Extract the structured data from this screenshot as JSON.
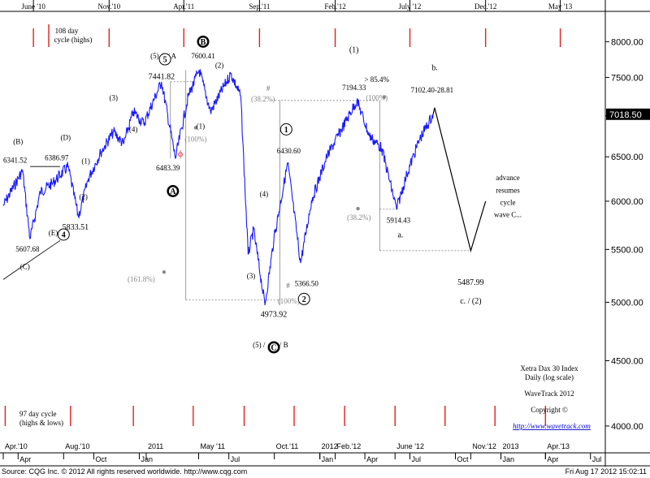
{
  "chart_data": {
    "type": "line",
    "title": "Xetra Dax 30 Index",
    "subtitle": "Daily (log scale)",
    "brand": "WaveTrack 2012",
    "copyright": "Copyright  ©",
    "url": "http://www.wavetrack.com",
    "last_price": "7018.50",
    "y_scale": "log",
    "ylim": [
      3800,
      8400
    ],
    "y_ticks": [
      "8000.00",
      "7500.00",
      "7000.00",
      "6500.00",
      "6000.00",
      "5500.00",
      "5000.00",
      "4500.00",
      "4000.00"
    ],
    "x_range": [
      "2010-04-01",
      "2013-07-31"
    ],
    "bottom_month_labels": [
      {
        "t": "Apr.'10",
        "d": "2010-04-01",
        "color": "#000"
      },
      {
        "t": "Apr",
        "d": "2010-05-01",
        "color": "#000"
      },
      {
        "t": "Aug.'10",
        "d": "2010-08-01",
        "color": "#000"
      },
      {
        "t": "Oct",
        "d": "2010-10-01",
        "color": "#000"
      },
      {
        "t": "Jan",
        "d": "2011-01-01",
        "color": "#000"
      },
      {
        "t": "2011",
        "d": "2011-01-15",
        "color": "#000"
      },
      {
        "t": "May '11",
        "d": "2011-05-01",
        "color": "#000"
      },
      {
        "t": "Jul",
        "d": "2011-07-01",
        "color": "#000"
      },
      {
        "t": "Oct.'11",
        "d": "2011-10-01",
        "color": "#000"
      },
      {
        "t": "Jan",
        "d": "2012-01-01",
        "color": "#000"
      },
      {
        "t": "2012",
        "d": "2012-01-01",
        "color": "#000"
      },
      {
        "t": "Feb.'12",
        "d": "2012-02-01",
        "color": "#000"
      },
      {
        "t": "Apr",
        "d": "2012-04-01",
        "color": "#000"
      },
      {
        "t": "June '12",
        "d": "2012-06-01",
        "color": "#000"
      },
      {
        "t": "Jul",
        "d": "2012-07-01",
        "color": "#000"
      },
      {
        "t": "Oct",
        "d": "2012-10-01",
        "color": "#000"
      },
      {
        "t": "Nov.'12",
        "d": "2012-11-01",
        "color": "#000"
      },
      {
        "t": "2013",
        "d": "2013-01-01",
        "color": "#000"
      },
      {
        "t": "Jan",
        "d": "2013-01-01",
        "color": "#000"
      },
      {
        "t": "Apr.'13",
        "d": "2013-04-01",
        "color": "#000"
      },
      {
        "t": "Apr",
        "d": "2013-04-01",
        "color": "#000"
      },
      {
        "t": "Jul",
        "d": "2013-07-01",
        "color": "#000"
      }
    ],
    "top_cycle_labels": [
      {
        "t": "June '10",
        "d": "2010-06-01"
      },
      {
        "t": "Nov.'10",
        "d": "2010-11-01"
      },
      {
        "t": "Apr.'11",
        "d": "2011-04-01"
      },
      {
        "t": "Sep.'11",
        "d": "2011-09-01"
      },
      {
        "t": "Feb.'12",
        "d": "2012-02-01"
      },
      {
        "t": "July '12",
        "d": "2012-07-01"
      },
      {
        "t": "Dec.'12",
        "d": "2012-12-01"
      },
      {
        "t": "May '13",
        "d": "2013-05-01"
      }
    ],
    "top_cycle_caption": [
      "108 day",
      "cycle (highs)"
    ],
    "bottom_cycle_caption": [
      "97 day cycle",
      "(highs & lows)"
    ],
    "bottom_cycle_dates": [
      "2010-04-05",
      "2010-08-15",
      "2010-12-20",
      "2011-04-20",
      "2011-08-01",
      "2011-11-10",
      "2012-02-20",
      "2012-06-01",
      "2012-09-10",
      "2012-12-20",
      "2013-04-01"
    ],
    "price_path": [
      [
        "2010-04-01",
        5950
      ],
      [
        "2010-05-10",
        6341.52
      ],
      [
        "2010-05-25",
        5607.68
      ],
      [
        "2010-06-15",
        6100
      ],
      [
        "2010-07-10",
        6200
      ],
      [
        "2010-08-10",
        6386.97
      ],
      [
        "2010-08-31",
        5833.51
      ],
      [
        "2010-09-20",
        6250
      ],
      [
        "2010-10-15",
        6550
      ],
      [
        "2010-11-10",
        6800
      ],
      [
        "2010-11-30",
        6650
      ],
      [
        "2010-12-20",
        7050
      ],
      [
        "2011-01-10",
        6900
      ],
      [
        "2011-02-15",
        7441.82
      ],
      [
        "2011-03-15",
        6483.39
      ],
      [
        "2011-04-10",
        7250
      ],
      [
        "2011-05-02",
        7600.41
      ],
      [
        "2011-05-25",
        7050
      ],
      [
        "2011-07-05",
        7550
      ],
      [
        "2011-07-25",
        7250
      ],
      [
        "2011-08-09",
        5450
      ],
      [
        "2011-08-20",
        5700
      ],
      [
        "2011-09-12",
        4973.92
      ],
      [
        "2011-09-30",
        5600
      ],
      [
        "2011-10-28",
        6430.6
      ],
      [
        "2011-11-23",
        5366.5
      ],
      [
        "2011-12-15",
        6000
      ],
      [
        "2012-01-15",
        6500
      ],
      [
        "2012-03-16",
        7194.33
      ],
      [
        "2012-04-10",
        6750
      ],
      [
        "2012-05-05",
        6600
      ],
      [
        "2012-06-04",
        5914.43
      ],
      [
        "2012-06-25",
        6300
      ],
      [
        "2012-07-20",
        6700
      ],
      [
        "2012-08-17",
        7018.5
      ]
    ],
    "forecast_path": [
      [
        "2012-08-20",
        7102.4
      ],
      [
        "2012-11-01",
        5487.99
      ],
      [
        "2012-12-01",
        6000
      ]
    ],
    "annotations": [
      {
        "t": "(B)",
        "d": "2010-05-01",
        "v": 6650,
        "s": 9
      },
      {
        "t": "6341.52",
        "d": "2010-04-25",
        "v": 6430,
        "s": 9
      },
      {
        "t": "(D)",
        "d": "2010-08-05",
        "v": 6700,
        "s": 9
      },
      {
        "t": "6386.97",
        "d": "2010-07-18",
        "v": 6460,
        "s": 9
      },
      {
        "t": "(1)",
        "d": "2010-09-15",
        "v": 6420,
        "s": 9
      },
      {
        "t": "(2)",
        "d": "2010-09-10",
        "v": 6020,
        "s": 9
      },
      {
        "t": "5833.51",
        "d": "2010-08-25",
        "v": 5700,
        "s": 10
      },
      {
        "t": "5607.68",
        "d": "2010-05-20",
        "v": 5480,
        "s": 9
      },
      {
        "t": "(E) /",
        "d": "2010-07-15",
        "v": 5640,
        "s": 9
      },
      {
        "t": "(C)",
        "d": "2010-05-15",
        "v": 5310,
        "s": 9
      },
      {
        "t": "(3)",
        "d": "2010-11-10",
        "v": 7200,
        "s": 9
      },
      {
        "t": "(4)",
        "d": "2010-12-20",
        "v": 6800,
        "s": 9
      },
      {
        "t": "(5) /",
        "d": "2011-02-05",
        "v": 7760,
        "s": 9
      },
      {
        "t": "/ A",
        "d": "2011-03-08",
        "v": 7760,
        "s": 9
      },
      {
        "t": "7441.82",
        "d": "2011-02-15",
        "v": 7480,
        "s": 10
      },
      {
        "t": "6483.39",
        "d": "2011-02-28",
        "v": 6340,
        "s": 9
      },
      {
        "t": "7600.41",
        "d": "2011-05-10",
        "v": 7760,
        "s": 9
      },
      {
        "t": "(2)",
        "d": "2011-06-12",
        "v": 7630,
        "s": 9
      },
      {
        "t": "(1)",
        "d": "2011-05-05",
        "v": 6840,
        "s": 9
      },
      {
        "t": "(100%)",
        "d": "2011-04-25",
        "v": 6680,
        "s": 9,
        "c": "#888"
      },
      {
        "t": "(4)",
        "d": "2011-09-10",
        "v": 6050,
        "s": 9
      },
      {
        "t": "6430.60",
        "d": "2011-10-30",
        "v": 6540,
        "s": 9
      },
      {
        "t": "(3)",
        "d": "2011-08-15",
        "v": 5220,
        "s": 9
      },
      {
        "t": "5366.50",
        "d": "2011-12-05",
        "v": 5150,
        "s": 9
      },
      {
        "t": "4973.92",
        "d": "2011-09-30",
        "v": 4870,
        "s": 10
      },
      {
        "t": "(5) /",
        "d": "2011-08-31",
        "v": 4610,
        "s": 9
      },
      {
        "t": "/ B",
        "d": "2011-10-20",
        "v": 4610,
        "s": 9
      },
      {
        "t": "(38.2%)",
        "d": "2011-09-08",
        "v": 7180,
        "s": 9,
        "c": "#888"
      },
      {
        "t": "(161.8%)",
        "d": "2011-01-05",
        "v": 5190,
        "s": 9,
        "c": "#888"
      },
      {
        "t": "(100%)",
        "d": "2011-10-30",
        "v": 4990,
        "s": 9,
        "c": "#888"
      },
      {
        "t": "(1)",
        "d": "2012-03-10",
        "v": 7850,
        "s": 10
      },
      {
        "t": "7194.33",
        "d": "2012-03-10",
        "v": 7330,
        "s": 9
      },
      {
        "t": "> 85.4%",
        "d": "2012-04-25",
        "v": 7440,
        "s": 9
      },
      {
        "t": "(100%)",
        "d": "2012-04-25",
        "v": 7200,
        "s": 9,
        "c": "#888"
      },
      {
        "t": "(38.2%)",
        "d": "2012-03-20",
        "v": 5800,
        "s": 9,
        "c": "#888"
      },
      {
        "t": "5914.43",
        "d": "2012-06-08",
        "v": 5770,
        "s": 9
      },
      {
        "t": "a.",
        "d": "2012-06-12",
        "v": 5620,
        "s": 10
      },
      {
        "t": "b.",
        "d": "2012-08-20",
        "v": 7600,
        "s": 10
      },
      {
        "t": "7102.40-28.81",
        "d": "2012-08-15",
        "v": 7300,
        "s": 9
      },
      {
        "t": "5487.99",
        "d": "2012-11-01",
        "v": 5160,
        "s": 10
      },
      {
        "t": "c. / (2)",
        "d": "2012-11-01",
        "v": 4990,
        "s": 10
      },
      {
        "t": "advance",
        "d": "2013-01-15",
        "v": 6230,
        "s": 9
      },
      {
        "t": "resumes",
        "d": "2013-01-15",
        "v": 6090,
        "s": 9
      },
      {
        "t": "cycle",
        "d": "2013-01-15",
        "v": 5960,
        "s": 9
      },
      {
        "t": "wave C...",
        "d": "2013-01-15",
        "v": 5830,
        "s": 9
      }
    ],
    "circle_labels": [
      {
        "t": "5",
        "d": "2011-02-22",
        "v": 7750,
        "style": "outline"
      },
      {
        "t": "4",
        "d": "2010-08-01",
        "v": 5650,
        "style": "outline"
      },
      {
        "t": "B",
        "d": "2011-05-10",
        "v": 8000,
        "style": "black"
      },
      {
        "t": "A",
        "d": "2011-03-10",
        "v": 6110,
        "style": "black"
      },
      {
        "t": "C",
        "d": "2011-09-30",
        "v": 4610,
        "style": "black"
      },
      {
        "t": "1",
        "d": "2011-10-25",
        "v": 6830,
        "style": "outline"
      },
      {
        "t": "2",
        "d": "2011-11-30",
        "v": 5030,
        "style": "outline"
      }
    ],
    "phi_symbol": "ϕ"
  },
  "footer": {
    "source": "Source: CQG Inc. © 2012 All rights reserved worldwide. http://www.cqg.com",
    "timestamp": "Fri Aug 17 2012 15:02:11"
  }
}
